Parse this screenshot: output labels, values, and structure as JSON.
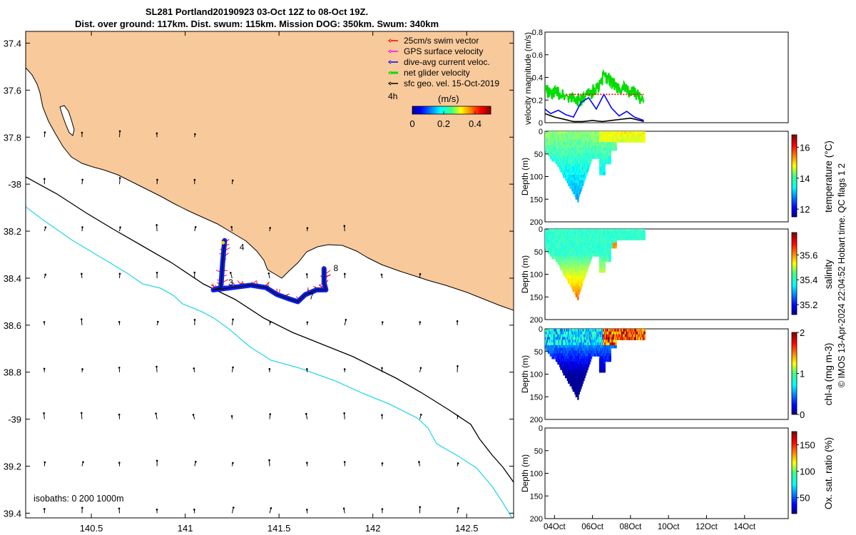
{
  "title": {
    "line1": "SL281 Portland20190923 03-Oct 12Z to 08-Oct 19Z.",
    "line2": "Dist. over ground: 117km. Dist. swum: 115km. Mission DOG: 350km. Swum: 340km"
  },
  "chart_data": [
    {
      "type": "map",
      "title": "Glider track map",
      "xlim": [
        140.15,
        142.75
      ],
      "ylim": [
        -39.42,
        -37.35
      ],
      "x_ticks": [
        140.5,
        141,
        141.5,
        142,
        142.5
      ],
      "x_tick_labels": [
        "140.5",
        "141",
        "141.5",
        "142",
        "142.5"
      ],
      "y_ticks": [
        -37.4,
        -37.6,
        -37.8,
        -38,
        -38.2,
        -38.4,
        -38.6,
        -38.8,
        -39,
        -39.2,
        -39.4
      ],
      "y_tick_labels": [
        "37.4",
        "37.6",
        "37.8",
        "-38",
        "38.2",
        "38.4",
        "38.6",
        "38.8",
        "-39",
        "39.2",
        "39.4"
      ],
      "legend": [
        {
          "label": "25cm/s swim vector",
          "color": "#ff0000"
        },
        {
          "label": "GPS surface velocity",
          "color": "#ff00ff"
        },
        {
          "label": "dive-avg current veloc.",
          "color": "#0000ff"
        },
        {
          "label": "net glider velocity",
          "color": "#00dd00"
        },
        {
          "label": "sfc geo. vel. 15-Oct-2019",
          "color": "#000000"
        }
      ],
      "legend_position": "top-right",
      "colorbar": {
        "title": "(m/s)",
        "ticks": [
          "0",
          "0.2",
          "0.4"
        ],
        "vmin": 0,
        "vmax": 0.5
      },
      "text_4h": "4h",
      "isobaths_label": "isobaths: 0   200  1000m",
      "day_labels": [
        "3",
        "4",
        "7",
        "8"
      ],
      "glider_track_lonlat": [
        [
          141.21,
          -38.24
        ],
        [
          141.2,
          -38.33
        ],
        [
          141.19,
          -38.44
        ],
        [
          141.15,
          -38.45
        ],
        [
          141.25,
          -38.44
        ],
        [
          141.35,
          -38.43
        ],
        [
          141.43,
          -38.44
        ],
        [
          141.49,
          -38.47
        ],
        [
          141.56,
          -38.49
        ],
        [
          141.6,
          -38.5
        ],
        [
          141.64,
          -38.47
        ],
        [
          141.7,
          -38.45
        ],
        [
          141.75,
          -38.45
        ],
        [
          141.74,
          -38.42
        ],
        [
          141.74,
          -38.36
        ]
      ],
      "colors": {
        "land": "#f8c99b",
        "sea": "#ffffff",
        "isobath_200": "#000000",
        "isobath_1000": "#2ad8e8"
      }
    },
    {
      "type": "line",
      "title": "velocity magnitude",
      "ylabel": "velocity magnitude (m/s)",
      "ylim": [
        0,
        0.8
      ],
      "y_ticks": [
        "0",
        "0.2",
        "0.4",
        "0.6",
        "0.8"
      ],
      "xlim_days": [
        3.5,
        16.3
      ],
      "series": [
        {
          "name": "net glider velocity",
          "color": "#00dd00",
          "x": [
            3.5,
            3.8,
            4.2,
            4.6,
            5.0,
            5.4,
            5.8,
            6.2,
            6.6,
            6.9,
            7.2,
            7.6,
            8.0,
            8.3,
            8.7
          ],
          "values": [
            0.3,
            0.25,
            0.27,
            0.24,
            0.22,
            0.19,
            0.25,
            0.3,
            0.4,
            0.38,
            0.33,
            0.3,
            0.28,
            0.25,
            0.2
          ]
        },
        {
          "name": "dive-avg current veloc.",
          "color": "#0000ff",
          "x": [
            3.5,
            3.8,
            4.2,
            4.6,
            5.0,
            5.4,
            5.8,
            6.2,
            6.6,
            7.0,
            7.4,
            7.8,
            8.2,
            8.7
          ],
          "values": [
            0.12,
            0.08,
            0.11,
            0.07,
            0.05,
            0.18,
            0.22,
            0.12,
            0.25,
            0.13,
            0.06,
            0.1,
            0.05,
            0.02
          ]
        },
        {
          "name": "25cm/s swim vector",
          "color": "#ff0000",
          "x": [
            4.6,
            8.7
          ],
          "values": [
            0.25,
            0.25
          ]
        },
        {
          "name": "sfc geo. vel.",
          "color": "#000000",
          "x": [
            3.5,
            4.0,
            4.5,
            5.0,
            5.5,
            6.0,
            6.5,
            7.0,
            7.5,
            8.0,
            8.5,
            8.7
          ],
          "values": [
            0.08,
            0.05,
            0.03,
            0.01,
            0.01,
            0.02,
            0.01,
            0.02,
            0.03,
            0.04,
            0.02,
            0.01
          ]
        }
      ]
    },
    {
      "type": "heatmap",
      "variable": "temperature",
      "colorbar_label": "temperature (°C)",
      "colorbar_ticks": [
        "12",
        "14",
        "16"
      ],
      "vrange": [
        11.5,
        16.8
      ],
      "ylabel": "Depth (m)",
      "depth_ticks": [
        "0",
        "50",
        "100",
        "150",
        "200"
      ],
      "data_xrange_days": [
        3.5,
        8.7
      ],
      "max_depth_m": 150,
      "dominant_value": 14.2,
      "deep_value": 13.0
    },
    {
      "type": "heatmap",
      "variable": "salinity",
      "colorbar_label": "salinity",
      "colorbar_ticks": [
        "35.2",
        "35.4",
        "35.6"
      ],
      "vrange": [
        35.12,
        35.78
      ],
      "ylabel": "Depth (m)",
      "depth_ticks": [
        "0",
        "50",
        "100",
        "150",
        "200"
      ],
      "data_xrange_days": [
        3.5,
        8.7
      ],
      "max_depth_m": 150,
      "dominant_value": 35.4,
      "deep_value": 35.5
    },
    {
      "type": "heatmap",
      "variable": "chl-a",
      "colorbar_label": "chl-a (mg m-3)",
      "colorbar_ticks": [
        "0",
        "1",
        "2"
      ],
      "vrange": [
        0,
        2
      ],
      "ylabel": "Depth (m)",
      "depth_ticks": [
        "0",
        "50",
        "100",
        "150",
        "200"
      ],
      "data_xrange_days": [
        3.5,
        8.7
      ],
      "max_depth_m": 150,
      "dominant_value": 0.7,
      "deep_value": 0.1
    },
    {
      "type": "heatmap",
      "variable": "oxygen saturation",
      "colorbar_label": "Ox. sat. ratio (%)",
      "colorbar_ticks": [
        "50",
        "100",
        "150"
      ],
      "vrange": [
        20,
        175
      ],
      "ylabel": "Depth (m)",
      "depth_ticks": [
        "0",
        "50",
        "100",
        "150",
        "200"
      ],
      "x_tick_labels": [
        "04Oct",
        "06Oct",
        "08Oct",
        "10Oct",
        "12Oct",
        "14Oct"
      ],
      "x_tick_days": [
        4,
        6,
        8,
        10,
        12,
        14
      ],
      "xlim_days": [
        3.5,
        16.3
      ]
    }
  ],
  "footer": {
    "imos_text": "© IMOS 13-Apr-2024 22:04:52 Hobart time. QC flags 1  2"
  }
}
